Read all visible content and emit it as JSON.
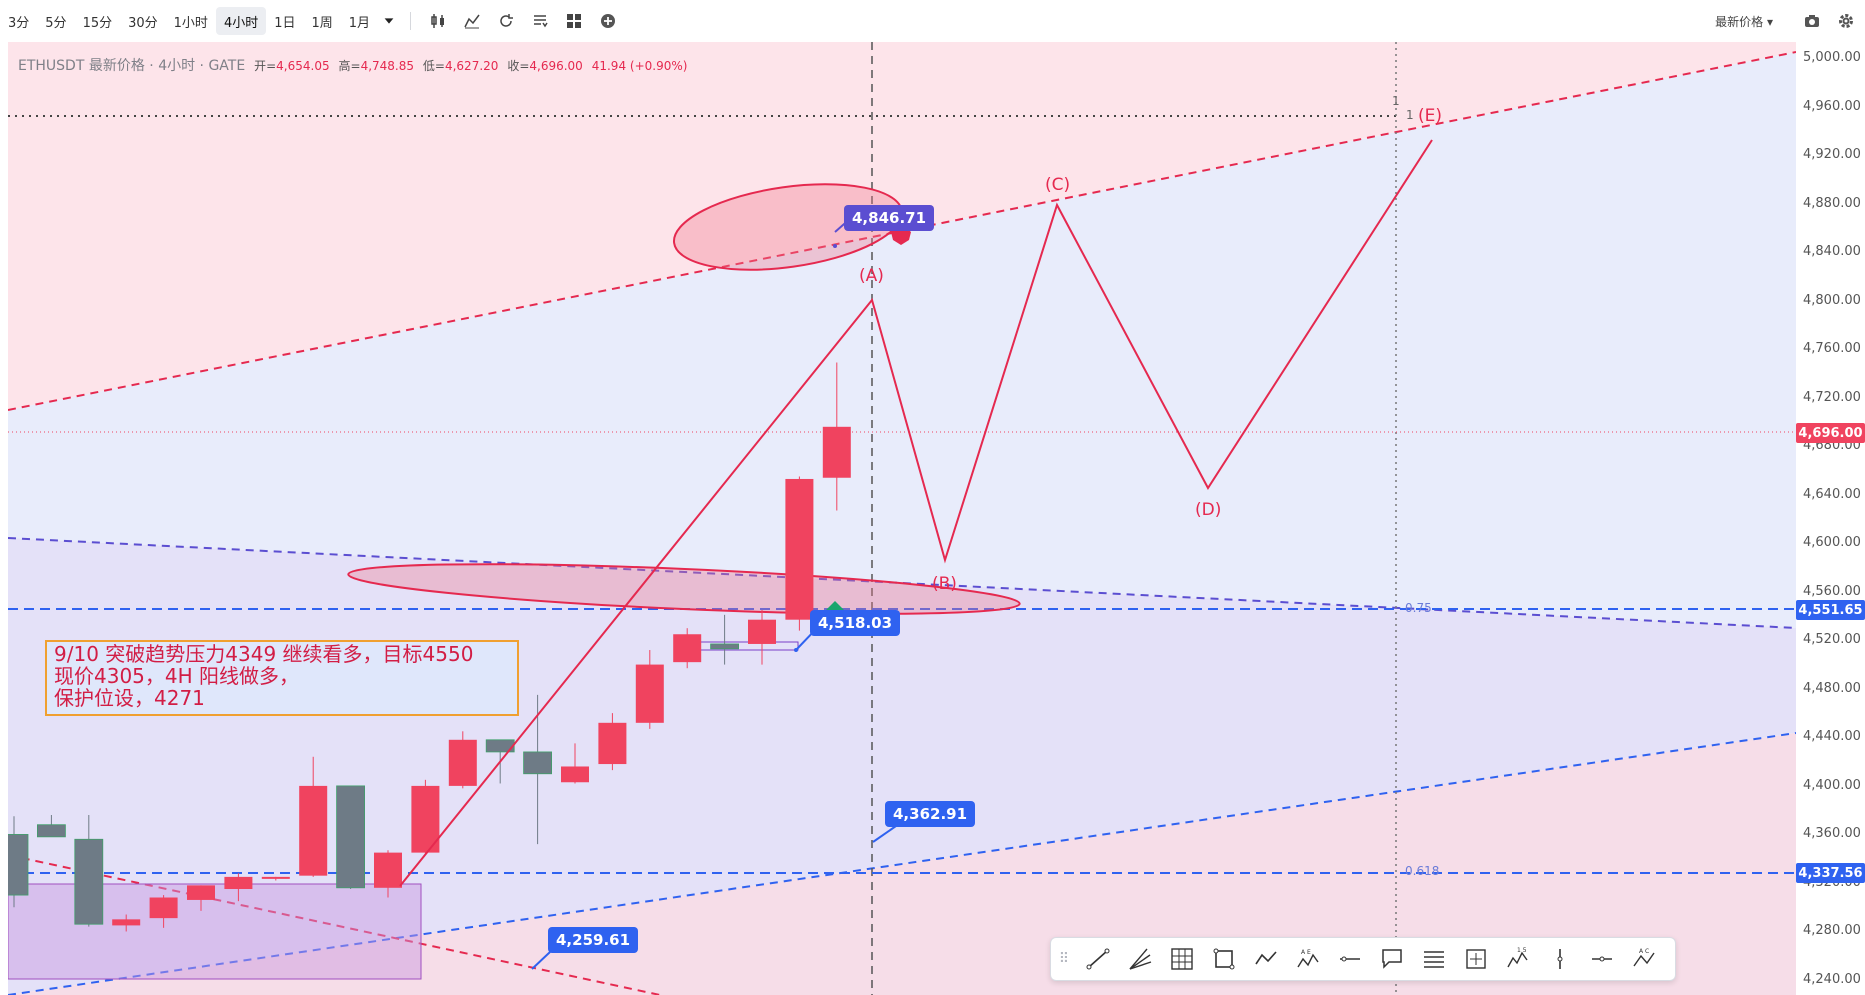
{
  "toolbar": {
    "intervals": [
      "3分",
      "5分",
      "15分",
      "30分",
      "1小时",
      "4小时",
      "1日",
      "1周",
      "1月"
    ],
    "active_interval": "4小时",
    "icons": [
      "candlestick-icon",
      "indicators-icon",
      "replay-icon",
      "templates-icon",
      "layout-icon",
      "add-icon"
    ],
    "price_type": "最新价格",
    "right_icons": [
      "camera-icon",
      "settings-icon"
    ]
  },
  "legend": {
    "symbol": "ETHUSDT 最新价格 · 4小时 · GATE",
    "open_label": "开=",
    "open": "4,654.05",
    "high_label": "高=",
    "high": "4,748.85",
    "low_label": "低=",
    "low": "4,627.20",
    "close_label": "收=",
    "close": "4,696.00",
    "change": "41.94 (+0.90%)"
  },
  "note": {
    "lines": [
      "9/10 突破趋势压力4349 继续看多，目标4550",
      "现价4305，4H 阳线做多，",
      "保护位设，4271"
    ]
  },
  "callouts": {
    "c1": "4,846.71",
    "c2": "4,518.03",
    "c3": "4,362.91",
    "c4": "4,259.61"
  },
  "wave_labels": [
    "(A)",
    "(B)",
    "(C)",
    "(D)",
    "(E)"
  ],
  "fib": {
    "f075": "0.75",
    "f0618": "0.618",
    "f1": "1"
  },
  "axis": {
    "ticks": [
      "5,000.00",
      "4,960.00",
      "4,920.00",
      "4,880.00",
      "4,840.00",
      "4,800.00",
      "4,760.00",
      "4,720.00",
      "4,680.00",
      "4,640.00",
      "4,600.00",
      "4,560.00",
      "4,520.00",
      "4,480.00",
      "4,440.00",
      "4,400.00",
      "4,360.00",
      "4,320.00",
      "4,280.00",
      "4,240.00"
    ],
    "current_price": "4,696.00",
    "level_1": "4,551.65",
    "level_2": "4,337.56"
  },
  "colors": {
    "up": "#f0435f",
    "down": "#6e7b86",
    "wave": "#e5294f",
    "fib": "#2f62f0",
    "accent": "#2f62f0"
  },
  "chart_data": {
    "type": "candlestick",
    "candles": [
      {
        "o": 4360,
        "h": 4375,
        "l": 4300,
        "c": 4310
      },
      {
        "o": 4368,
        "h": 4376,
        "l": 4358,
        "c": 4358
      },
      {
        "o": 4356,
        "h": 4376,
        "l": 4284,
        "c": 4286
      },
      {
        "o": 4285,
        "h": 4294,
        "l": 4280,
        "c": 4290
      },
      {
        "o": 4291,
        "h": 4310,
        "l": 4283,
        "c": 4308
      },
      {
        "o": 4306,
        "h": 4318,
        "l": 4297,
        "c": 4318
      },
      {
        "o": 4315,
        "h": 4328,
        "l": 4305,
        "c": 4325
      },
      {
        "o": 4325,
        "h": 4325,
        "l": 4322,
        "c": 4325
      },
      {
        "o": 4326,
        "h": 4424,
        "l": 4325,
        "c": 4400
      },
      {
        "o": 4400,
        "h": 4400,
        "l": 4315,
        "c": 4316
      },
      {
        "o": 4316,
        "h": 4347,
        "l": 4308,
        "c": 4345
      },
      {
        "o": 4345,
        "h": 4405,
        "l": 4343,
        "c": 4400
      },
      {
        "o": 4400,
        "h": 4445,
        "l": 4398,
        "c": 4438
      },
      {
        "o": 4438,
        "h": 4438,
        "l": 4402,
        "c": 4428
      },
      {
        "o": 4428,
        "h": 4475,
        "l": 4352,
        "c": 4410
      },
      {
        "o": 4403,
        "h": 4435,
        "l": 4402,
        "c": 4416
      },
      {
        "o": 4418,
        "h": 4460,
        "l": 4413,
        "c": 4452
      },
      {
        "o": 4452,
        "h": 4512,
        "l": 4447,
        "c": 4500
      },
      {
        "o": 4502,
        "h": 4530,
        "l": 4497,
        "c": 4525
      },
      {
        "o": 4517,
        "h": 4541,
        "l": 4500,
        "c": 4513
      },
      {
        "o": 4517,
        "h": 4545,
        "l": 4500,
        "c": 4537
      },
      {
        "o": 4537,
        "h": 4655,
        "l": 4528,
        "c": 4653
      },
      {
        "o": 4654,
        "h": 4749,
        "l": 4627,
        "c": 4696
      }
    ],
    "current": 4696.0,
    "levels": [
      4551.65,
      4337.56
    ],
    "wave_points": [
      4805,
      4590,
      4880,
      4650,
      4940
    ],
    "ylim": [
      4240,
      5000
    ]
  }
}
